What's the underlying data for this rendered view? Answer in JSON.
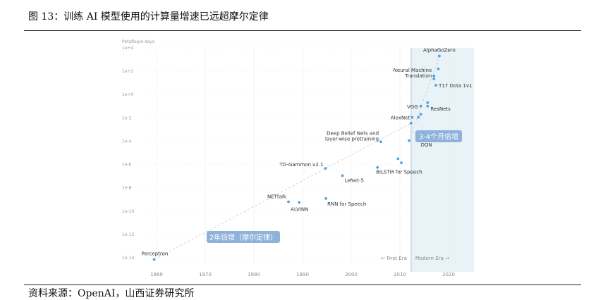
{
  "figure": {
    "title": "图 13：训练 AI 模型使用的计算量增速已远超摩尔定律",
    "source": "资料来源：OpenAI，山西证券研究所"
  },
  "chart_data": {
    "type": "scatter",
    "ylabel": "Petaflop/s-days",
    "y_scale": "log",
    "ylim": [
      1e-14,
      10000.0
    ],
    "xlim": [
      1956,
      2024
    ],
    "grid": true,
    "x_ticks": [
      "1960",
      "1970",
      "1980",
      "1990",
      "2000",
      "2010",
      "2020"
    ],
    "y_ticks": [
      "1e+4",
      "1e+2",
      "1e+0",
      "1e-2",
      "1e-4",
      "1e-6",
      "1e-8",
      "1e-10",
      "1e-12",
      "1e-14"
    ],
    "era_labels": {
      "first": "← First Era",
      "modern": "Modern Era →"
    },
    "annotations": {
      "moore": "2年倍增（摩尔定律）",
      "modern": "3-4个月倍增"
    },
    "colors": {
      "point": "#4fa3e0",
      "era_shade": "#e8f2f7",
      "badge": "#8fb2db",
      "divider": "#a9c9e6",
      "trend": "#c8c8c8"
    },
    "points": [
      {
        "label": "Perceptron",
        "x": 1959.5,
        "y": 7.1e-15
      },
      {
        "label": "NETtalk",
        "x": 1987.1,
        "y": 6.3e-10
      },
      {
        "label": "ALVINN",
        "x": 1989.3,
        "y": 5.6e-10
      },
      {
        "label": "RNN for Speech",
        "x": 1994.8,
        "y": 1.2e-09
      },
      {
        "label": "TD-Gammon v2.1",
        "x": 1994.7,
        "y": 4.6e-07
      },
      {
        "label": "LeNet-5",
        "x": 1998.2,
        "y": 1.1e-07
      },
      {
        "label": "BiLSTM for Speech",
        "x": 2005.4,
        "y": 5.6e-07
      },
      {
        "label": "Deep Belief Nets and layer-wise pretraining",
        "x": 2006.1,
        "y": 8.9e-05
      },
      {
        "x": 2009.6,
        "y": 3.1e-06
      },
      {
        "x": 2010.3,
        "y": 1.4e-06
      },
      {
        "x": 2011.9,
        "y": 0.00011
      },
      {
        "label": "DQN",
        "x": 2013.7,
        "y": 0.00011
      },
      {
        "x": 2012.3,
        "y": 0.0035
      },
      {
        "label": "AlexNet",
        "x": 2012.5,
        "y": 0.011
      },
      {
        "x": 2013.8,
        "y": 0.011
      },
      {
        "x": 2014.3,
        "y": 0.02
      },
      {
        "label": "VGG",
        "x": 2014.3,
        "y": 0.1
      },
      {
        "label": "ResNets",
        "x": 2015.7,
        "y": 0.1
      },
      {
        "x": 2015.7,
        "y": 0.2
      },
      {
        "label": "T17 Dota 1v1",
        "x": 2017.4,
        "y": 6.3
      },
      {
        "label": "Neural Machine Translation",
        "x": 2017.0,
        "y": 22.0
      },
      {
        "x": 2017.0,
        "y": 40.0
      },
      {
        "x": 2017.9,
        "y": 160.0
      },
      {
        "label": "AlphaGoZero",
        "x": 2018.1,
        "y": 2000.0
      }
    ]
  }
}
